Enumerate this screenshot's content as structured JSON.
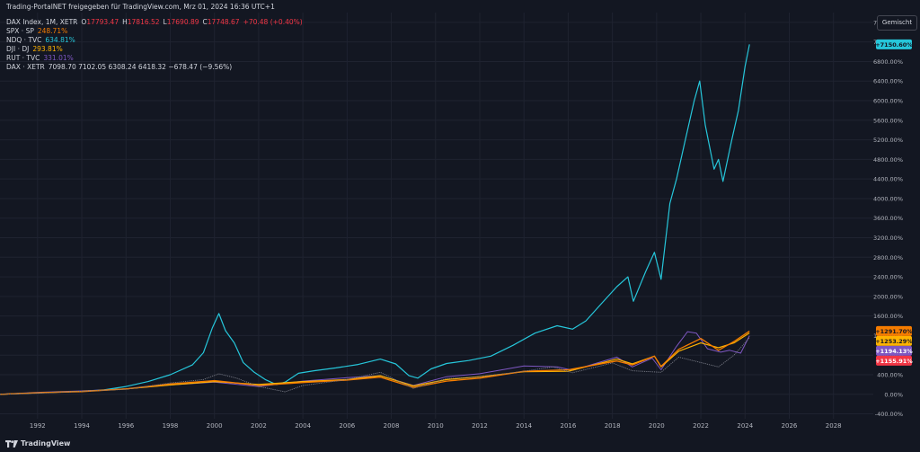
{
  "header": {
    "title": "Trading-PortalNET freigegeben für TradingView.com, Mrz 01, 2024 16:36 UTC+1"
  },
  "legend": {
    "main": {
      "symbol": "DAX Index, 1M, XETR",
      "o_label": "O",
      "o": "17793.47",
      "h_label": "H",
      "h": "17816.52",
      "l_label": "L",
      "l": "17690.89",
      "c_label": "C",
      "c": "17748.67",
      "change": "+70.48 (+0.40%)"
    },
    "rows": [
      {
        "label": "SPX · SP",
        "value": "248.71%",
        "color": "#f57c00"
      },
      {
        "label": "NDQ · TVC",
        "value": "634.81%",
        "color": "#26c6da"
      },
      {
        "label": "DJI · DJ",
        "value": "293.81%",
        "color": "#ffb300"
      },
      {
        "label": "RUT · TVC",
        "value": "331.01%",
        "color": "#7e57c2"
      }
    ],
    "dax_row": {
      "label": "DAX · XETR",
      "values": "7098.70  7102.05  6308.24  6418.32  −678.47 (−9.56%)"
    }
  },
  "scale_button": "Gemischt",
  "footer": {
    "brand": "TradingView",
    "logo_icon": "tradingview-logo-icon"
  },
  "colors": {
    "background": "#131722",
    "grid": "#1f2330",
    "text": "#b2b5be",
    "nasdaq": "#26c6da",
    "spx": "#f57c00",
    "dji": "#ffb300",
    "rut": "#7e57c2",
    "dax": "#787b86",
    "neg": "#f23645"
  },
  "chart_data": {
    "type": "line",
    "ylabel": "",
    "xlabel": "",
    "ylim": [
      -500,
      7800
    ],
    "xlim": [
      1990.3,
      2029.8
    ],
    "x_ticks": [
      "1992",
      "1994",
      "1996",
      "1998",
      "2000",
      "2002",
      "2004",
      "2006",
      "2008",
      "2010",
      "2012",
      "2014",
      "2016",
      "2018",
      "2020",
      "2022",
      "2024",
      "2026",
      "2028"
    ],
    "y_ticks": [
      "7600.00%",
      "7200.00%",
      "6800.00%",
      "6400.00%",
      "6000.00%",
      "5600.00%",
      "5200.00%",
      "4800.00%",
      "4400.00%",
      "4000.00%",
      "3600.00%",
      "3200.00%",
      "2800.00%",
      "2400.00%",
      "2000.00%",
      "1600.00%",
      "1200.00%",
      "800.00%",
      "400.00%",
      "0.00%",
      "-400.00%"
    ],
    "y_tick_values": [
      7600,
      7200,
      6800,
      6400,
      6000,
      5600,
      5200,
      4800,
      4400,
      4000,
      3600,
      3200,
      2800,
      2400,
      2000,
      1600,
      1200,
      800,
      400,
      0,
      -400
    ],
    "grid": true,
    "series": [
      {
        "key": "nasdaq",
        "points": [
          [
            1990.3,
            0
          ],
          [
            1992,
            30
          ],
          [
            1994,
            60
          ],
          [
            1995,
            90
          ],
          [
            1996,
            160
          ],
          [
            1997,
            260
          ],
          [
            1998,
            400
          ],
          [
            1999,
            600
          ],
          [
            1999.5,
            850
          ],
          [
            1999.9,
            1350
          ],
          [
            2000.2,
            1650
          ],
          [
            2000.5,
            1300
          ],
          [
            2000.9,
            1050
          ],
          [
            2001.3,
            650
          ],
          [
            2001.8,
            450
          ],
          [
            2002.3,
            300
          ],
          [
            2002.8,
            200
          ],
          [
            2003.2,
            250
          ],
          [
            2003.8,
            430
          ],
          [
            2004.5,
            480
          ],
          [
            2005.5,
            540
          ],
          [
            2006.5,
            610
          ],
          [
            2007.5,
            720
          ],
          [
            2008.2,
            620
          ],
          [
            2008.8,
            380
          ],
          [
            2009.2,
            330
          ],
          [
            2009.8,
            520
          ],
          [
            2010.5,
            630
          ],
          [
            2011.5,
            690
          ],
          [
            2012.5,
            780
          ],
          [
            2013.5,
            1000
          ],
          [
            2014.5,
            1250
          ],
          [
            2015.5,
            1400
          ],
          [
            2016.2,
            1330
          ],
          [
            2016.8,
            1500
          ],
          [
            2017.5,
            1850
          ],
          [
            2018.2,
            2200
          ],
          [
            2018.7,
            2400
          ],
          [
            2018.95,
            1900
          ],
          [
            2019.5,
            2500
          ],
          [
            2019.9,
            2900
          ],
          [
            2020.2,
            2350
          ],
          [
            2020.6,
            3900
          ],
          [
            2020.9,
            4400
          ],
          [
            2021.3,
            5200
          ],
          [
            2021.7,
            6000
          ],
          [
            2021.95,
            6400
          ],
          [
            2022.2,
            5500
          ],
          [
            2022.6,
            4600
          ],
          [
            2022.8,
            4800
          ],
          [
            2023.0,
            4350
          ],
          [
            2023.4,
            5200
          ],
          [
            2023.7,
            5800
          ],
          [
            2024.0,
            6700
          ],
          [
            2024.2,
            7150
          ]
        ]
      },
      {
        "key": "rut",
        "points": [
          [
            1990.3,
            0
          ],
          [
            1992,
            40
          ],
          [
            1994,
            70
          ],
          [
            1996,
            110
          ],
          [
            1998,
            190
          ],
          [
            2000,
            250
          ],
          [
            2002,
            160
          ],
          [
            2004,
            270
          ],
          [
            2006,
            340
          ],
          [
            2007.5,
            380
          ],
          [
            2009,
            180
          ],
          [
            2010.5,
            360
          ],
          [
            2012,
            420
          ],
          [
            2014,
            580
          ],
          [
            2015.5,
            560
          ],
          [
            2016.2,
            490
          ],
          [
            2018.2,
            760
          ],
          [
            2018.9,
            560
          ],
          [
            2019.8,
            740
          ],
          [
            2020.2,
            500
          ],
          [
            2020.9,
            980
          ],
          [
            2021.4,
            1280
          ],
          [
            2021.8,
            1250
          ],
          [
            2022.3,
            930
          ],
          [
            2022.9,
            860
          ],
          [
            2023.3,
            900
          ],
          [
            2023.8,
            840
          ],
          [
            2024.2,
            1194
          ]
        ]
      },
      {
        "key": "dji",
        "points": [
          [
            1990.3,
            0
          ],
          [
            1992,
            30
          ],
          [
            1994,
            60
          ],
          [
            1996,
            110
          ],
          [
            1998,
            190
          ],
          [
            2000,
            260
          ],
          [
            2002,
            200
          ],
          [
            2004,
            260
          ],
          [
            2006,
            300
          ],
          [
            2007.5,
            380
          ],
          [
            2009,
            170
          ],
          [
            2010.5,
            300
          ],
          [
            2012,
            360
          ],
          [
            2014,
            460
          ],
          [
            2016,
            470
          ],
          [
            2018.2,
            720
          ],
          [
            2018.9,
            620
          ],
          [
            2019.9,
            780
          ],
          [
            2020.2,
            560
          ],
          [
            2021,
            880
          ],
          [
            2022,
            1050
          ],
          [
            2022.8,
            950
          ],
          [
            2023.5,
            1050
          ],
          [
            2024.2,
            1253
          ]
        ]
      },
      {
        "key": "spx",
        "points": [
          [
            1990.3,
            0
          ],
          [
            1992,
            30
          ],
          [
            1994,
            55
          ],
          [
            1996,
            110
          ],
          [
            1998,
            210
          ],
          [
            2000,
            280
          ],
          [
            2002,
            180
          ],
          [
            2004,
            240
          ],
          [
            2006,
            290
          ],
          [
            2007.5,
            350
          ],
          [
            2009,
            140
          ],
          [
            2010.5,
            270
          ],
          [
            2012,
            330
          ],
          [
            2014,
            470
          ],
          [
            2016,
            500
          ],
          [
            2018.2,
            680
          ],
          [
            2018.9,
            600
          ],
          [
            2019.9,
            780
          ],
          [
            2020.2,
            570
          ],
          [
            2021,
            920
          ],
          [
            2022,
            1140
          ],
          [
            2022.8,
            900
          ],
          [
            2023.5,
            1080
          ],
          [
            2024.2,
            1292
          ]
        ]
      },
      {
        "key": "dax",
        "points": [
          [
            1990.3,
            0
          ],
          [
            1992,
            20
          ],
          [
            1994,
            60
          ],
          [
            1996,
            100
          ],
          [
            1998,
            230
          ],
          [
            1999.5,
            300
          ],
          [
            2000.2,
            420
          ],
          [
            2001,
            330
          ],
          [
            2002,
            160
          ],
          [
            2003.2,
            50
          ],
          [
            2004,
            180
          ],
          [
            2006,
            300
          ],
          [
            2007.5,
            450
          ],
          [
            2009,
            120
          ],
          [
            2010.5,
            320
          ],
          [
            2012,
            360
          ],
          [
            2014,
            470
          ],
          [
            2015.3,
            560
          ],
          [
            2016.2,
            440
          ],
          [
            2018,
            640
          ],
          [
            2018.9,
            480
          ],
          [
            2020.2,
            450
          ],
          [
            2021,
            760
          ],
          [
            2022.8,
            560
          ],
          [
            2023.5,
            800
          ],
          [
            2024.2,
            1156
          ]
        ]
      }
    ],
    "end_labels": [
      {
        "key": "nasdaq",
        "text": "+7150.60%",
        "y": 7150.6,
        "color": "#26c6da",
        "text_color": "#131722"
      },
      {
        "key": "spx",
        "text": "+1291.70%",
        "y": 1291.7,
        "color": "#f57c00",
        "text_color": "#131722"
      },
      {
        "key": "dji",
        "text": "+1253.29%",
        "y": 1253.29,
        "color": "#ffb300",
        "text_color": "#131722"
      },
      {
        "key": "rut",
        "text": "+1194.13%",
        "y": 1194.13,
        "color": "#7e57c2",
        "text_color": "#ffffff"
      },
      {
        "key": "dax",
        "text": "+1155.91%",
        "y": 1155.91,
        "color": "#f23645",
        "text_color": "#ffffff"
      }
    ]
  }
}
